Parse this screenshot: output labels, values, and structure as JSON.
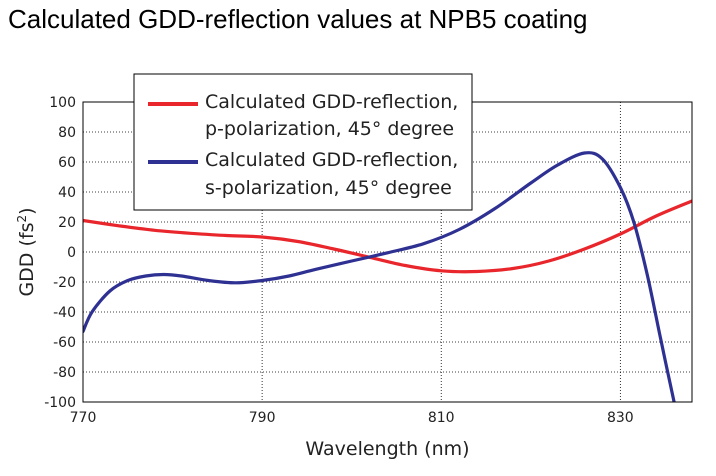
{
  "chart_data": {
    "type": "line",
    "title": "Calculated GDD-reflection values at NPB5 coating",
    "xlabel": "Wavelength (nm)",
    "ylabel_main": "GDD (fs",
    "ylabel_sup": "2",
    "ylabel_close": ")",
    "xlim": [
      770,
      838
    ],
    "ylim": [
      -100,
      100
    ],
    "xticks": [
      770,
      790,
      810,
      830
    ],
    "yticks": [
      100,
      80,
      60,
      40,
      20,
      0,
      -20,
      -40,
      -60,
      -80,
      -100
    ],
    "grid": "dotted",
    "legend_position": "top-left",
    "series": [
      {
        "name_line1": "Calculated GDD-reflection,",
        "name_line2": "p-polarization, 45° degree",
        "color": "#e8262b",
        "x": [
          770,
          774,
          778,
          782,
          786,
          790,
          794,
          798,
          802,
          806,
          810,
          814,
          818,
          822,
          826,
          830,
          834,
          838
        ],
        "y": [
          21,
          17.5,
          14.5,
          12.5,
          11,
          10,
          7,
          2,
          -3.5,
          -9,
          -12.5,
          -13,
          -11,
          -6,
          2,
          12,
          24,
          34
        ]
      },
      {
        "name_line1": "Calculated GDD-reflection,",
        "name_line2": "s-polarization, 45° degree",
        "color": "#2e3192",
        "x": [
          770,
          771,
          773,
          775,
          777,
          779,
          781,
          784,
          787,
          790,
          793,
          796,
          800,
          804,
          808,
          812,
          816,
          820,
          823,
          826,
          828,
          830,
          831.5,
          833,
          834.5,
          836
        ],
        "y": [
          -53,
          -40,
          -26,
          -19,
          -16,
          -15,
          -16,
          -19,
          -20.5,
          -19,
          -16,
          -11.5,
          -6,
          -0.5,
          5.5,
          15,
          29,
          46,
          58,
          66,
          62,
          43,
          20,
          -15,
          -58,
          -100
        ]
      }
    ]
  }
}
